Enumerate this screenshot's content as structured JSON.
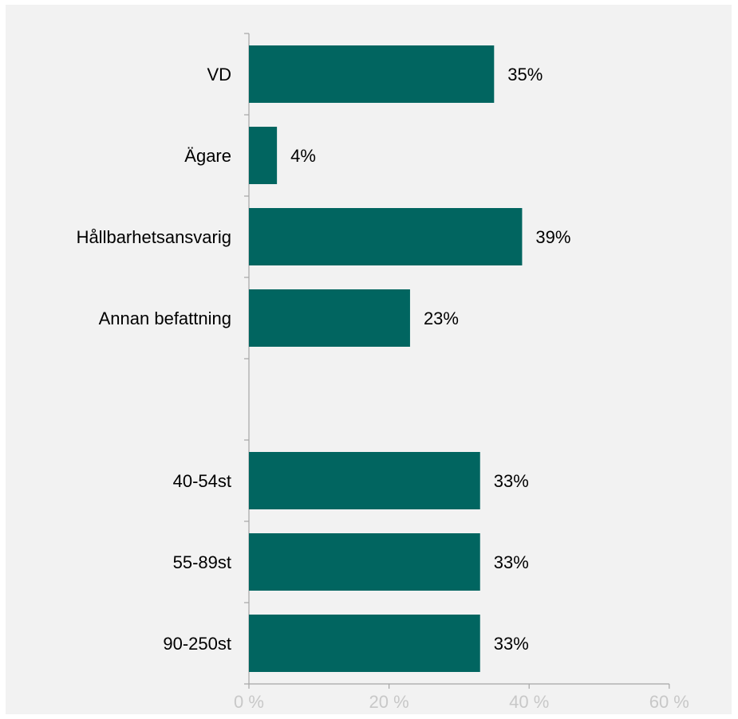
{
  "chart_data": {
    "type": "bar",
    "orientation": "horizontal",
    "categories": [
      "VD",
      "Ägare",
      "Hållbarhetsansvarig",
      "Annan befattning",
      "",
      "40-54st",
      "55-89st",
      "90-250st"
    ],
    "values": [
      35,
      4,
      39,
      23,
      null,
      33,
      33,
      33
    ],
    "value_labels": [
      "35%",
      "4%",
      "39%",
      "23%",
      "",
      "33%",
      "33%",
      "33%"
    ],
    "x_ticks": [
      "0 %",
      "20 %",
      "40 %",
      "60 %"
    ],
    "xlim": [
      0,
      60
    ],
    "grid": false,
    "legend": "none",
    "title": "",
    "xlabel": "",
    "ylabel": "",
    "colors": {
      "bar": "#016560",
      "background": "#f2f2f2",
      "axis": "#a6a6a6",
      "tick_text": "#c8c8c8",
      "text": "#000000"
    }
  }
}
